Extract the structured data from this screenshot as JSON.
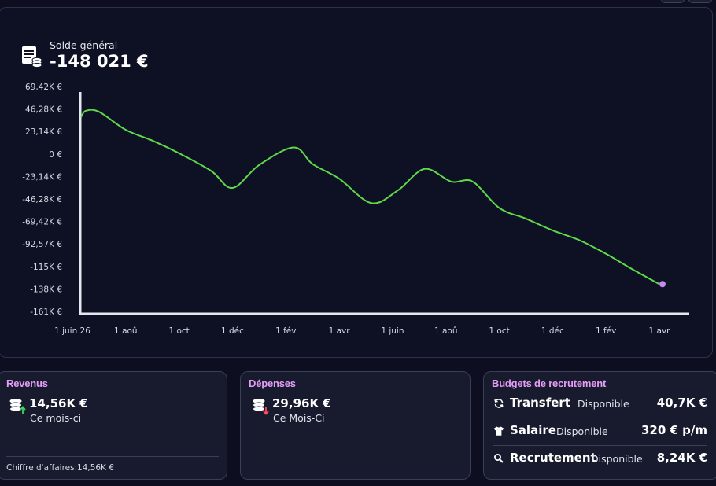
{
  "balance": {
    "label": "Solde général",
    "value": "-148 021 €",
    "icon": "ledger-coins-icon"
  },
  "chart_data": {
    "type": "line",
    "y_ticks": [
      "69,42K €",
      "46,28K €",
      "23,14K €",
      "0 €",
      "-23,14K €",
      "-46,28K €",
      "-69,42K €",
      "-92,57K €",
      "-115K €",
      "-138K €",
      "-161K €"
    ],
    "x_ticks": [
      "1 juin 26",
      "1 aoû",
      "1 oct",
      "1 déc",
      "1 fév",
      "1 avr",
      "1 juin",
      "1 aoû",
      "1 oct",
      "1 déc",
      "1 fév",
      "1 avr"
    ],
    "ylim": [
      -161000,
      69420
    ],
    "series": [
      {
        "color": "#5fd94a",
        "end_marker_color": "#c38af0",
        "points": [
          {
            "x": 0,
            "y": 38000
          },
          {
            "x": 0.25,
            "y": 44500
          },
          {
            "x": 0.5,
            "y": 43500
          },
          {
            "x": 1,
            "y": 25000
          },
          {
            "x": 1.5,
            "y": 14000
          },
          {
            "x": 2,
            "y": 1000
          },
          {
            "x": 2.6,
            "y": -17000
          },
          {
            "x": 3,
            "y": -34500
          },
          {
            "x": 3.5,
            "y": -11000
          },
          {
            "x": 4.15,
            "y": 7000
          },
          {
            "x": 4.5,
            "y": -10000
          },
          {
            "x": 5,
            "y": -25000
          },
          {
            "x": 5.6,
            "y": -50000
          },
          {
            "x": 6.1,
            "y": -37000
          },
          {
            "x": 6.6,
            "y": -15000
          },
          {
            "x": 7.1,
            "y": -28000
          },
          {
            "x": 7.5,
            "y": -28000
          },
          {
            "x": 8,
            "y": -55000
          },
          {
            "x": 8.5,
            "y": -66000
          },
          {
            "x": 9,
            "y": -78000
          },
          {
            "x": 9.5,
            "y": -88000
          },
          {
            "x": 10,
            "y": -102000
          },
          {
            "x": 10.5,
            "y": -118000
          },
          {
            "x": 11,
            "y": -133000
          }
        ]
      }
    ]
  },
  "cards": {
    "revenus": {
      "title": "Revenus",
      "value": "14,56K €",
      "period": "Ce mois-ci",
      "icon": "coins-up-icon",
      "footer_label": "Chiffre d'affaires:",
      "footer_value": "14,56K €"
    },
    "depenses": {
      "title": "Dépenses",
      "value": "29,96K €",
      "period": "Ce Mois-Ci",
      "icon": "coins-down-icon"
    },
    "budgets": {
      "title": "Budgets de recrutement",
      "rows": [
        {
          "icon": "refresh-icon",
          "name": "Transfert",
          "status": "Disponible",
          "value": "40,7K €"
        },
        {
          "icon": "tshirt-icon",
          "name": "Salaire",
          "status": "Disponible",
          "value": "320 € p/m"
        },
        {
          "icon": "search-icon",
          "name": "Recrutement",
          "status": "Disponible",
          "value": "8,24K €"
        }
      ]
    }
  }
}
